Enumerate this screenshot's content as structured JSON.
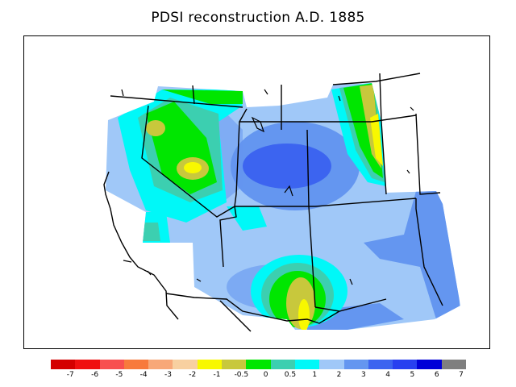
{
  "title": "PDSI reconstruction A.D. 1885",
  "legend": {
    "tick_labels": [
      "-7",
      "-6",
      "-5",
      "-4",
      "-3",
      "-2",
      "-1",
      "-0.5",
      "0",
      "0.5",
      "1",
      "2",
      "3",
      "4",
      "5",
      "6",
      "7"
    ],
    "colors": [
      "#d40000",
      "#f01010",
      "#f85050",
      "#f87a3c",
      "#f8a878",
      "#f8d0a0",
      "#f8f800",
      "#c8c83c",
      "#00e600",
      "#3ccfb0",
      "#00f8f8",
      "#a0c8f8",
      "#6496f0",
      "#3c64f0",
      "#2840f0",
      "#0000d8",
      "#7f7f7f"
    ]
  }
}
